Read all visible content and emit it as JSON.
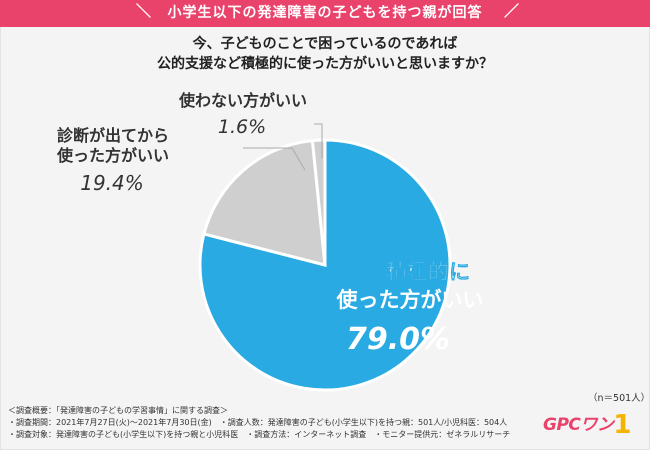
{
  "header": {
    "banner": "小学生以下の発達障害の子どもを持つ親が回答"
  },
  "question": {
    "line1": "今、子どものことで困っているのであれば",
    "line2": "公的支援など積極的に使った方がいいと思いますか？"
  },
  "chart_data": {
    "type": "pie",
    "start_angle_deg": 0,
    "direction": "clockwise",
    "slices": [
      {
        "line1": "積極的に",
        "line2": "使った方がいい",
        "value": 79.0,
        "value_label": "79.0%",
        "color": "#29aae2"
      },
      {
        "line1": "診断が出てから",
        "line2": "使った方がいい",
        "value": 19.4,
        "value_label": "19.4%",
        "color": "#cfcfcf"
      },
      {
        "line1": "使わない方がいい",
        "line2": "",
        "value": 1.6,
        "value_label": "1.6%",
        "color": "#cfcfcf"
      }
    ]
  },
  "sample_size": "（n＝501人）",
  "notes": {
    "line1": "＜調査概要：「発達障害の子どもの学習事情」に関する調査＞",
    "line2": "・調査期間：2021年7月27日(火)〜2021年7月30日(金)　・調査人数：発達障害の子ども(小学生以下)を持つ親：501人/小児科医：504人",
    "line3": "・調査対象：発達障害の子ども(小学生以下)を持つ親と小児科医　・調査方法：インターネット調査　・モニター提供元：ゼネラルリサーチ"
  },
  "logo": {
    "text": "GPCワン",
    "digit": "1"
  }
}
